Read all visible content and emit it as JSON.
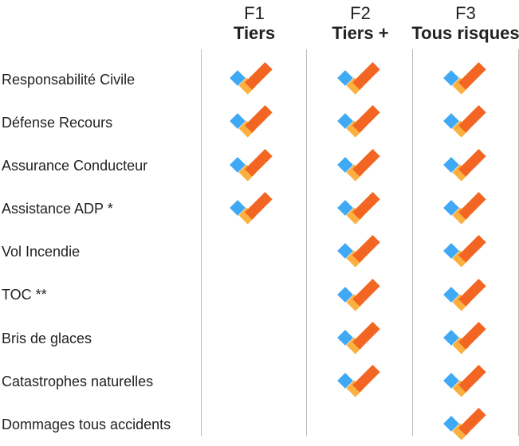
{
  "colors": {
    "check_orange": "#F26522",
    "check_yellow": "#FBB040",
    "check_blue": "#3FA9F5",
    "divider": "#BDBDBD",
    "text": "#222222"
  },
  "icon": "checkmark-icon",
  "formulas": [
    {
      "code": "F1",
      "name": "Tiers"
    },
    {
      "code": "F2",
      "name": "Tiers +"
    },
    {
      "code": "F3",
      "name": "Tous risques"
    }
  ],
  "guarantees": [
    {
      "label": "Responsabilité Civile",
      "included": [
        true,
        true,
        true
      ]
    },
    {
      "label": "Défense Recours",
      "included": [
        true,
        true,
        true
      ]
    },
    {
      "label": "Assurance Conducteur",
      "included": [
        true,
        true,
        true
      ]
    },
    {
      "label": "Assistance ADP *",
      "included": [
        true,
        true,
        true
      ]
    },
    {
      "label": "Vol Incendie",
      "included": [
        false,
        true,
        true
      ]
    },
    {
      "label": "TOC **",
      "included": [
        false,
        true,
        true
      ]
    },
    {
      "label": "Bris de glaces",
      "included": [
        false,
        true,
        true
      ]
    },
    {
      "label": "Catastrophes naturelles",
      "included": [
        false,
        true,
        true
      ]
    },
    {
      "label": "Dommages tous accidents",
      "included": [
        false,
        false,
        true
      ]
    }
  ]
}
